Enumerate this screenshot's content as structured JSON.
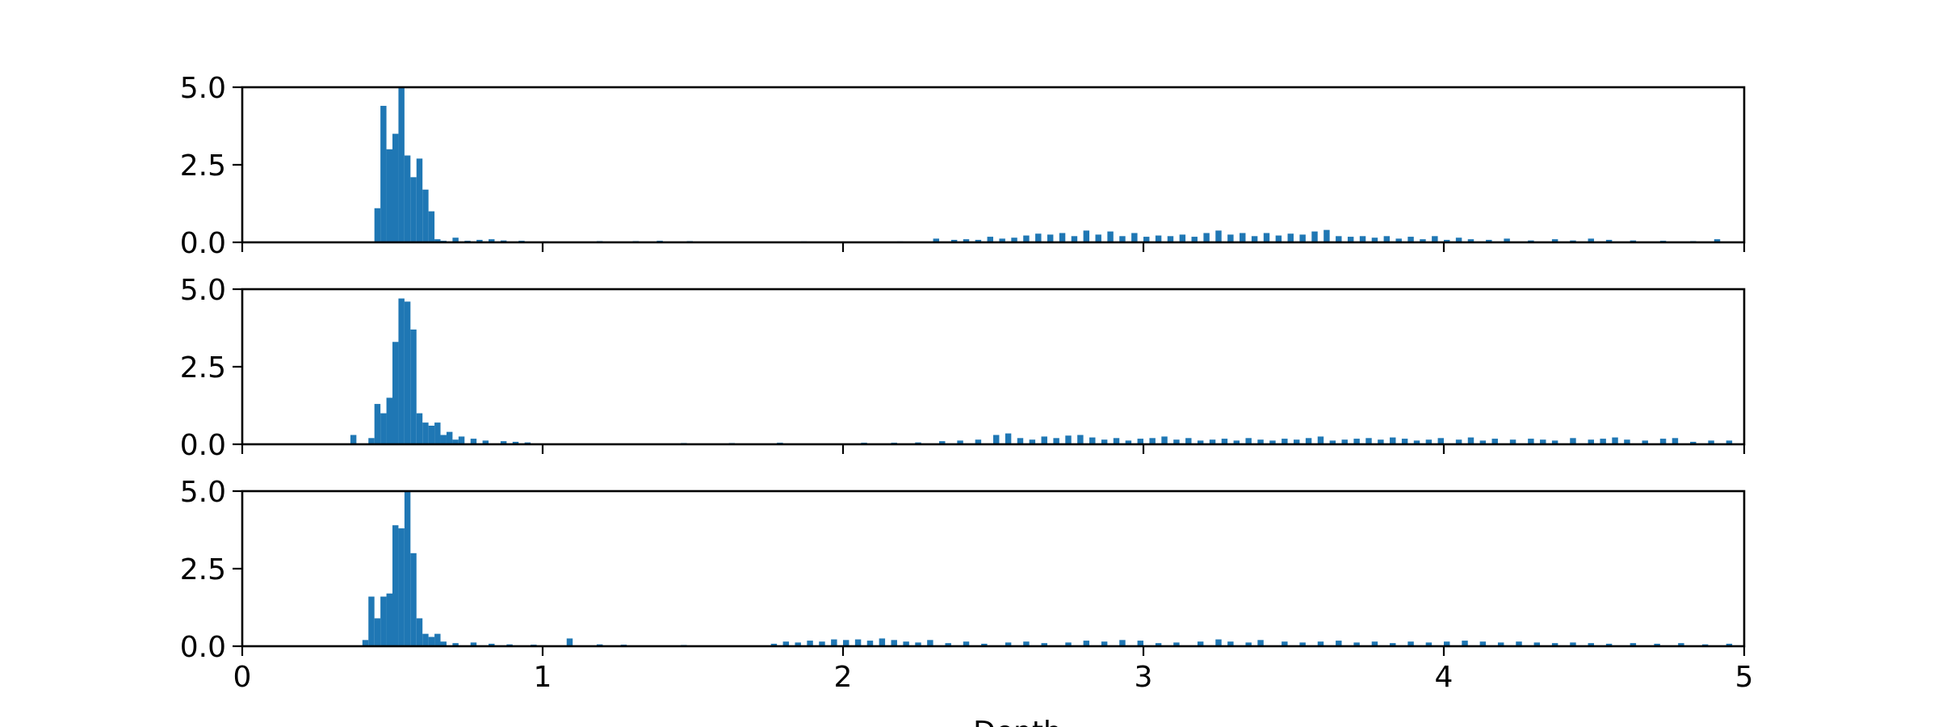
{
  "chart_data": [
    {
      "type": "bar",
      "title": "",
      "xlabel": "",
      "ylabel": "",
      "xlim": [
        0,
        5
      ],
      "ylim": [
        0,
        5
      ],
      "xticks": [
        "0",
        "1",
        "2",
        "3",
        "4",
        "5"
      ],
      "yticks": [
        "0.0",
        "2.5",
        "5.0"
      ],
      "show_xtick_labels": false,
      "bin_width": 0.02,
      "grid": false,
      "color": "#1f77b4",
      "bins": [
        [
          0.44,
          1.1
        ],
        [
          0.46,
          4.4
        ],
        [
          0.48,
          3.0
        ],
        [
          0.5,
          3.5
        ],
        [
          0.52,
          5.0
        ],
        [
          0.54,
          2.8
        ],
        [
          0.56,
          2.1
        ],
        [
          0.58,
          2.7
        ],
        [
          0.6,
          1.7
        ],
        [
          0.62,
          1.0
        ],
        [
          0.64,
          0.1
        ],
        [
          0.66,
          0.05
        ],
        [
          0.7,
          0.15
        ],
        [
          0.74,
          0.05
        ],
        [
          0.78,
          0.08
        ],
        [
          0.82,
          0.1
        ],
        [
          0.86,
          0.06
        ],
        [
          0.92,
          0.05
        ],
        [
          1.0,
          0.03
        ],
        [
          1.18,
          0.04
        ],
        [
          1.3,
          0.04
        ],
        [
          1.38,
          0.05
        ],
        [
          1.48,
          0.04
        ],
        [
          1.86,
          0.03
        ],
        [
          2.18,
          0.03
        ],
        [
          2.3,
          0.12
        ],
        [
          2.36,
          0.08
        ],
        [
          2.4,
          0.1
        ],
        [
          2.44,
          0.08
        ],
        [
          2.48,
          0.18
        ],
        [
          2.52,
          0.12
        ],
        [
          2.56,
          0.15
        ],
        [
          2.6,
          0.22
        ],
        [
          2.64,
          0.28
        ],
        [
          2.68,
          0.25
        ],
        [
          2.72,
          0.3
        ],
        [
          2.76,
          0.2
        ],
        [
          2.8,
          0.38
        ],
        [
          2.84,
          0.25
        ],
        [
          2.88,
          0.35
        ],
        [
          2.92,
          0.2
        ],
        [
          2.96,
          0.3
        ],
        [
          3.0,
          0.18
        ],
        [
          3.04,
          0.22
        ],
        [
          3.08,
          0.2
        ],
        [
          3.12,
          0.25
        ],
        [
          3.16,
          0.18
        ],
        [
          3.2,
          0.3
        ],
        [
          3.24,
          0.38
        ],
        [
          3.28,
          0.25
        ],
        [
          3.32,
          0.3
        ],
        [
          3.36,
          0.2
        ],
        [
          3.4,
          0.3
        ],
        [
          3.44,
          0.22
        ],
        [
          3.48,
          0.28
        ],
        [
          3.52,
          0.25
        ],
        [
          3.56,
          0.35
        ],
        [
          3.6,
          0.4
        ],
        [
          3.64,
          0.2
        ],
        [
          3.68,
          0.18
        ],
        [
          3.72,
          0.2
        ],
        [
          3.76,
          0.15
        ],
        [
          3.8,
          0.2
        ],
        [
          3.84,
          0.12
        ],
        [
          3.88,
          0.18
        ],
        [
          3.92,
          0.1
        ],
        [
          3.96,
          0.2
        ],
        [
          4.0,
          0.08
        ],
        [
          4.04,
          0.15
        ],
        [
          4.08,
          0.1
        ],
        [
          4.14,
          0.08
        ],
        [
          4.2,
          0.12
        ],
        [
          4.28,
          0.06
        ],
        [
          4.36,
          0.1
        ],
        [
          4.42,
          0.06
        ],
        [
          4.48,
          0.12
        ],
        [
          4.54,
          0.08
        ],
        [
          4.62,
          0.06
        ],
        [
          4.72,
          0.05
        ],
        [
          4.82,
          0.04
        ],
        [
          4.9,
          0.1
        ]
      ]
    },
    {
      "type": "bar",
      "title": "",
      "xlabel": "",
      "ylabel": "",
      "xlim": [
        0,
        5
      ],
      "ylim": [
        0,
        5
      ],
      "xticks": [
        "0",
        "1",
        "2",
        "3",
        "4",
        "5"
      ],
      "yticks": [
        "0.0",
        "2.5",
        "5.0"
      ],
      "show_xtick_labels": false,
      "bin_width": 0.02,
      "grid": false,
      "color": "#1f77b4",
      "bins": [
        [
          0.36,
          0.3
        ],
        [
          0.42,
          0.2
        ],
        [
          0.44,
          1.3
        ],
        [
          0.46,
          1.0
        ],
        [
          0.48,
          1.5
        ],
        [
          0.5,
          3.3
        ],
        [
          0.52,
          4.7
        ],
        [
          0.54,
          4.6
        ],
        [
          0.56,
          3.7
        ],
        [
          0.58,
          1.0
        ],
        [
          0.6,
          0.7
        ],
        [
          0.62,
          0.6
        ],
        [
          0.64,
          0.7
        ],
        [
          0.66,
          0.3
        ],
        [
          0.68,
          0.4
        ],
        [
          0.7,
          0.15
        ],
        [
          0.72,
          0.25
        ],
        [
          0.76,
          0.18
        ],
        [
          0.8,
          0.12
        ],
        [
          0.86,
          0.1
        ],
        [
          0.9,
          0.08
        ],
        [
          0.94,
          0.06
        ],
        [
          1.46,
          0.04
        ],
        [
          1.62,
          0.04
        ],
        [
          1.78,
          0.05
        ],
        [
          2.06,
          0.05
        ],
        [
          2.16,
          0.05
        ],
        [
          2.24,
          0.06
        ],
        [
          2.32,
          0.1
        ],
        [
          2.38,
          0.12
        ],
        [
          2.44,
          0.15
        ],
        [
          2.5,
          0.3
        ],
        [
          2.54,
          0.35
        ],
        [
          2.58,
          0.2
        ],
        [
          2.62,
          0.15
        ],
        [
          2.66,
          0.25
        ],
        [
          2.7,
          0.2
        ],
        [
          2.74,
          0.28
        ],
        [
          2.78,
          0.3
        ],
        [
          2.82,
          0.22
        ],
        [
          2.86,
          0.15
        ],
        [
          2.9,
          0.2
        ],
        [
          2.94,
          0.12
        ],
        [
          2.98,
          0.18
        ],
        [
          3.02,
          0.2
        ],
        [
          3.06,
          0.25
        ],
        [
          3.1,
          0.15
        ],
        [
          3.14,
          0.2
        ],
        [
          3.18,
          0.12
        ],
        [
          3.22,
          0.15
        ],
        [
          3.26,
          0.18
        ],
        [
          3.3,
          0.12
        ],
        [
          3.34,
          0.2
        ],
        [
          3.38,
          0.15
        ],
        [
          3.42,
          0.12
        ],
        [
          3.46,
          0.18
        ],
        [
          3.5,
          0.15
        ],
        [
          3.54,
          0.2
        ],
        [
          3.58,
          0.25
        ],
        [
          3.62,
          0.12
        ],
        [
          3.66,
          0.15
        ],
        [
          3.7,
          0.18
        ],
        [
          3.74,
          0.2
        ],
        [
          3.78,
          0.15
        ],
        [
          3.82,
          0.22
        ],
        [
          3.86,
          0.18
        ],
        [
          3.9,
          0.12
        ],
        [
          3.94,
          0.15
        ],
        [
          3.98,
          0.2
        ],
        [
          4.04,
          0.15
        ],
        [
          4.08,
          0.22
        ],
        [
          4.12,
          0.12
        ],
        [
          4.16,
          0.18
        ],
        [
          4.22,
          0.15
        ],
        [
          4.28,
          0.18
        ],
        [
          4.32,
          0.15
        ],
        [
          4.36,
          0.12
        ],
        [
          4.42,
          0.2
        ],
        [
          4.48,
          0.15
        ],
        [
          4.52,
          0.18
        ],
        [
          4.56,
          0.22
        ],
        [
          4.6,
          0.15
        ],
        [
          4.66,
          0.12
        ],
        [
          4.72,
          0.18
        ],
        [
          4.76,
          0.2
        ],
        [
          4.82,
          0.08
        ],
        [
          4.88,
          0.12
        ],
        [
          4.94,
          0.12
        ]
      ]
    },
    {
      "type": "bar",
      "title": "",
      "xlabel": "Depth",
      "ylabel": "",
      "xlim": [
        0,
        5
      ],
      "ylim": [
        0,
        5
      ],
      "xticks": [
        "0",
        "1",
        "2",
        "3",
        "4",
        "5"
      ],
      "yticks": [
        "0.0",
        "2.5",
        "5.0"
      ],
      "show_xtick_labels": true,
      "bin_width": 0.02,
      "grid": false,
      "color": "#1f77b4",
      "bins": [
        [
          0.4,
          0.2
        ],
        [
          0.42,
          1.6
        ],
        [
          0.44,
          0.9
        ],
        [
          0.46,
          1.6
        ],
        [
          0.48,
          1.7
        ],
        [
          0.5,
          3.9
        ],
        [
          0.52,
          3.8
        ],
        [
          0.54,
          5.0
        ],
        [
          0.56,
          3.0
        ],
        [
          0.58,
          0.9
        ],
        [
          0.6,
          0.4
        ],
        [
          0.62,
          0.3
        ],
        [
          0.64,
          0.4
        ],
        [
          0.66,
          0.15
        ],
        [
          0.7,
          0.1
        ],
        [
          0.76,
          0.12
        ],
        [
          0.82,
          0.08
        ],
        [
          0.88,
          0.06
        ],
        [
          0.96,
          0.05
        ],
        [
          1.08,
          0.25
        ],
        [
          1.18,
          0.06
        ],
        [
          1.26,
          0.05
        ],
        [
          1.46,
          0.04
        ],
        [
          1.76,
          0.08
        ],
        [
          1.8,
          0.15
        ],
        [
          1.84,
          0.12
        ],
        [
          1.88,
          0.18
        ],
        [
          1.92,
          0.15
        ],
        [
          1.96,
          0.22
        ],
        [
          2.0,
          0.2
        ],
        [
          2.04,
          0.22
        ],
        [
          2.08,
          0.18
        ],
        [
          2.12,
          0.25
        ],
        [
          2.16,
          0.2
        ],
        [
          2.2,
          0.15
        ],
        [
          2.24,
          0.12
        ],
        [
          2.28,
          0.2
        ],
        [
          2.34,
          0.1
        ],
        [
          2.4,
          0.15
        ],
        [
          2.46,
          0.08
        ],
        [
          2.54,
          0.12
        ],
        [
          2.6,
          0.15
        ],
        [
          2.66,
          0.1
        ],
        [
          2.74,
          0.12
        ],
        [
          2.8,
          0.18
        ],
        [
          2.86,
          0.15
        ],
        [
          2.92,
          0.2
        ],
        [
          2.98,
          0.18
        ],
        [
          3.04,
          0.1
        ],
        [
          3.1,
          0.12
        ],
        [
          3.18,
          0.15
        ],
        [
          3.24,
          0.22
        ],
        [
          3.28,
          0.15
        ],
        [
          3.34,
          0.12
        ],
        [
          3.38,
          0.2
        ],
        [
          3.46,
          0.15
        ],
        [
          3.52,
          0.12
        ],
        [
          3.58,
          0.15
        ],
        [
          3.64,
          0.18
        ],
        [
          3.7,
          0.12
        ],
        [
          3.76,
          0.15
        ],
        [
          3.82,
          0.1
        ],
        [
          3.88,
          0.15
        ],
        [
          3.94,
          0.12
        ],
        [
          4.0,
          0.15
        ],
        [
          4.06,
          0.18
        ],
        [
          4.12,
          0.15
        ],
        [
          4.18,
          0.12
        ],
        [
          4.24,
          0.15
        ],
        [
          4.3,
          0.12
        ],
        [
          4.36,
          0.1
        ],
        [
          4.42,
          0.12
        ],
        [
          4.48,
          0.1
        ],
        [
          4.54,
          0.08
        ],
        [
          4.62,
          0.1
        ],
        [
          4.7,
          0.08
        ],
        [
          4.78,
          0.1
        ],
        [
          4.86,
          0.06
        ],
        [
          4.94,
          0.08
        ]
      ]
    }
  ]
}
